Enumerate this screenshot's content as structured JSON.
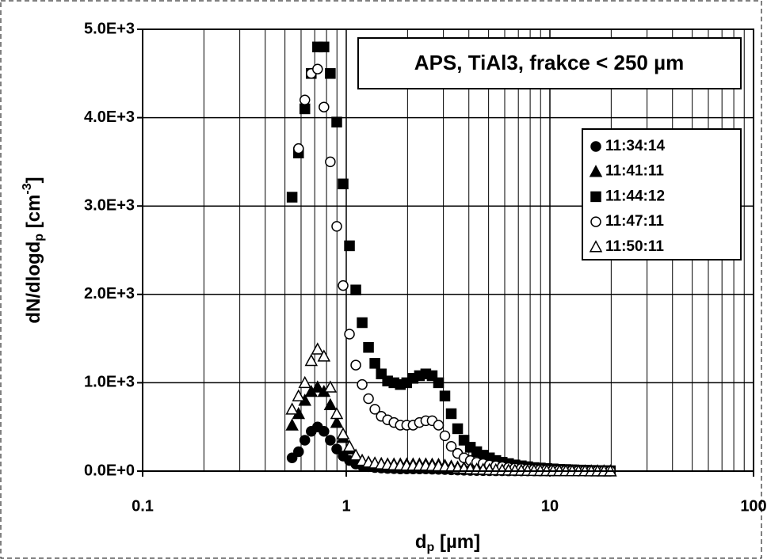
{
  "chart_data": {
    "type": "scatter",
    "annotation": "APS, TiAl3,  frakce < 250 µm",
    "xlabel": {
      "main": "d",
      "sub": "p",
      "unit": " [µm]"
    },
    "ylabel": {
      "main": "dN/dlogd",
      "sub": "p",
      "unit": " [cm",
      "sup": "-3",
      "close": "]"
    },
    "xlog": true,
    "grid": true,
    "minor_grid": true,
    "legend": "upper right",
    "xlim": [
      0.1,
      100
    ],
    "xticks": [
      0.1,
      1,
      10,
      100
    ],
    "ylim": [
      0,
      5000
    ],
    "yticks": [
      {
        "value": 0,
        "label": "0.0E+0"
      },
      {
        "value": 1000,
        "label": "1.0E+3"
      },
      {
        "value": 2000,
        "label": "2.0E+3"
      },
      {
        "value": 3000,
        "label": "3.0E+3"
      },
      {
        "value": 4000,
        "label": "4.0E+3"
      },
      {
        "value": 5000,
        "label": "5.0E+3"
      }
    ],
    "x": [
      0.542,
      0.583,
      0.626,
      0.673,
      0.723,
      0.777,
      0.835,
      0.898,
      0.965,
      1.037,
      1.114,
      1.197,
      1.286,
      1.382,
      1.486,
      1.596,
      1.715,
      1.843,
      1.981,
      2.129,
      2.288,
      2.458,
      2.642,
      2.839,
      3.051,
      3.278,
      3.523,
      3.786,
      4.068,
      4.371,
      4.698,
      5.048,
      5.425,
      5.829,
      6.264,
      6.732,
      7.234,
      7.774,
      8.354,
      8.977,
      9.647,
      10.37,
      11.14,
      11.97,
      12.86,
      13.82,
      14.86,
      15.96,
      17.15,
      18.43,
      19.81
    ],
    "series": [
      {
        "name": "11:34:14",
        "color": "#000000",
        "marker": "circle",
        "filled": true,
        "values": [
          150,
          220,
          350,
          450,
          500,
          450,
          350,
          250,
          170,
          120,
          80,
          60,
          50,
          40,
          35,
          30,
          28,
          25,
          25,
          25,
          25,
          25,
          22,
          20,
          18,
          15,
          12,
          10,
          8,
          7,
          6,
          5,
          4,
          4,
          3,
          3,
          2,
          2,
          2,
          1,
          1,
          1,
          1,
          1,
          1,
          0,
          0,
          0,
          0,
          0,
          0
        ]
      },
      {
        "name": "11:41:11",
        "color": "#000000",
        "marker": "triangle",
        "filled": true,
        "values": [
          520,
          650,
          800,
          900,
          950,
          900,
          750,
          550,
          380,
          250,
          170,
          120,
          100,
          90,
          85,
          80,
          80,
          80,
          80,
          80,
          80,
          80,
          78,
          75,
          65,
          55,
          45,
          38,
          32,
          28,
          24,
          20,
          17,
          15,
          13,
          11,
          10,
          9,
          8,
          7,
          6,
          5,
          4,
          4,
          3,
          3,
          2,
          2,
          2,
          1,
          1
        ]
      },
      {
        "name": "11:44:12",
        "color": "#000000",
        "marker": "square",
        "filled": true,
        "values": [
          3100,
          3600,
          4100,
          4500,
          4800,
          4800,
          4500,
          3950,
          3250,
          2550,
          2050,
          1680,
          1400,
          1220,
          1100,
          1020,
          1000,
          980,
          1000,
          1050,
          1080,
          1100,
          1080,
          1000,
          850,
          650,
          480,
          350,
          270,
          220,
          180,
          150,
          120,
          100,
          85,
          70,
          60,
          50,
          40,
          35,
          30,
          25,
          20,
          18,
          15,
          12,
          10,
          8,
          6,
          5,
          4
        ]
      },
      {
        "name": "11:47:11",
        "color": "#000000",
        "marker": "circle",
        "filled": false,
        "values": [
          null,
          3650,
          4200,
          4500,
          4550,
          4120,
          3500,
          2770,
          2100,
          1550,
          1200,
          980,
          820,
          700,
          620,
          580,
          550,
          520,
          520,
          520,
          550,
          570,
          570,
          520,
          400,
          280,
          200,
          150,
          120,
          100,
          85,
          70,
          60,
          50,
          40,
          35,
          30,
          25,
          20,
          17,
          15,
          12,
          10,
          8,
          7,
          6,
          5,
          4,
          3,
          3,
          2
        ]
      },
      {
        "name": "11:50:11",
        "color": "#000000",
        "marker": "triangle",
        "filled": false,
        "values": [
          700,
          850,
          1000,
          1250,
          1380,
          1300,
          950,
          650,
          420,
          280,
          180,
          120,
          100,
          90,
          80,
          75,
          70,
          68,
          65,
          65,
          65,
          65,
          62,
          58,
          50,
          42,
          35,
          30,
          25,
          22,
          19,
          16,
          14,
          12,
          10,
          9,
          8,
          7,
          6,
          5,
          4,
          4,
          3,
          3,
          2,
          2,
          2,
          1,
          1,
          1,
          1
        ]
      }
    ]
  }
}
